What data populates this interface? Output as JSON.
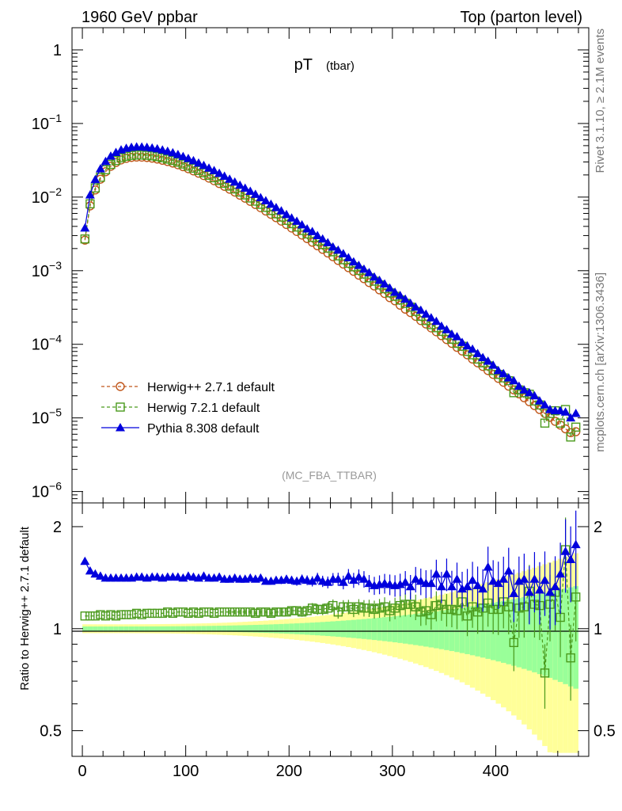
{
  "header": {
    "left": "1960 GeV ppbar",
    "right": "Top (parton level)"
  },
  "side_text": {
    "rivet": "Rivet 3.1.10, ≥ 2.1M events",
    "mcplots": "mcplots.cern.ch [arXiv:1306.3436]"
  },
  "chart_data": [
    {
      "type": "scatter",
      "title": "pT",
      "title_sub": "(tbar)",
      "watermark": "(MC_FBA_TTBAR)",
      "yscale": "log",
      "xlim": [
        -10,
        490
      ],
      "ylim": [
        7e-07,
        2
      ],
      "ytick_labels": [
        {
          "base": "1",
          "exp": ""
        },
        {
          "base": "10",
          "exp": "−1"
        },
        {
          "base": "10",
          "exp": "−2"
        },
        {
          "base": "10",
          "exp": "−3"
        },
        {
          "base": "10",
          "exp": "−4"
        },
        {
          "base": "10",
          "exp": "−5"
        },
        {
          "base": "10",
          "exp": "−6"
        }
      ],
      "legend_position": "bottom-left",
      "x": [
        2.5,
        7.5,
        12.5,
        17.5,
        22.5,
        27.5,
        32.5,
        37.5,
        42.5,
        47.5,
        52.5,
        57.5,
        62.5,
        67.5,
        72.5,
        77.5,
        82.5,
        87.5,
        92.5,
        97.5,
        102.5,
        107.5,
        112.5,
        117.5,
        122.5,
        127.5,
        132.5,
        137.5,
        142.5,
        147.5,
        152.5,
        157.5,
        162.5,
        167.5,
        172.5,
        177.5,
        182.5,
        187.5,
        192.5,
        197.5,
        202.5,
        207.5,
        212.5,
        217.5,
        222.5,
        227.5,
        232.5,
        237.5,
        242.5,
        247.5,
        252.5,
        257.5,
        262.5,
        267.5,
        272.5,
        277.5,
        282.5,
        287.5,
        292.5,
        297.5,
        302.5,
        307.5,
        312.5,
        317.5,
        322.5,
        327.5,
        332.5,
        337.5,
        342.5,
        347.5,
        352.5,
        357.5,
        362.5,
        367.5,
        372.5,
        377.5,
        382.5,
        387.5,
        392.5,
        397.5,
        402.5,
        407.5,
        412.5,
        417.5,
        422.5,
        427.5,
        432.5,
        437.5,
        442.5,
        447.5,
        452.5,
        457.5,
        462.5,
        467.5,
        472.5,
        477.5
      ],
      "series": [
        {
          "name": "Herwig++ 2.7.1 default",
          "color": "#c0561a",
          "marker": "open-circle",
          "line": "dashed",
          "values": [
            0.0026,
            0.0076,
            0.0125,
            0.0175,
            0.0221,
            0.0262,
            0.0295,
            0.032,
            0.0336,
            0.0346,
            0.035,
            0.0349,
            0.0345,
            0.0338,
            0.0329,
            0.0317,
            0.0304,
            0.029,
            0.0275,
            0.0259,
            0.0243,
            0.0227,
            0.0211,
            0.0196,
            0.0181,
            0.0167,
            0.0153,
            0.014,
            0.0128,
            0.0117,
            0.0106,
            0.00967,
            0.00876,
            0.00793,
            0.00717,
            0.00647,
            0.00583,
            0.00525,
            0.00472,
            0.00424,
            0.0038,
            0.00341,
            0.00305,
            0.00273,
            0.00244,
            0.00218,
            0.00195,
            0.00174,
            0.00155,
            0.00138,
            0.00123,
            0.0011,
            0.00098,
            0.00087,
            0.00078,
            0.00069,
            0.00062,
            0.00055,
            0.00049,
            0.00043,
            0.00039,
            0.00034,
            0.0003,
            0.00027,
            0.00024,
            0.00021,
            0.000189,
            0.000167,
            0.000148,
            0.000131,
            0.000116,
            0.000103,
            9.1e-05,
            8.1e-05,
            7.2e-05,
            6.3e-05,
            5.6e-05,
            5e-05,
            4.4e-05,
            3.9e-05,
            3.45e-05,
            3.05e-05,
            2.7e-05,
            2.4e-05,
            2.12e-05,
            1.88e-05,
            1.66e-05,
            1.47e-05,
            1.3e-05,
            1.15e-05,
            1.02e-05,
            9e-06,
            8e-06,
            7.1e-06,
            6.3e-06,
            6.5e-06
          ]
        },
        {
          "name": "Herwig 7.2.1 default",
          "color": "#4a9a1c",
          "marker": "open-square",
          "line": "dashed",
          "values": [
            0.0027,
            0.0081,
            0.0133,
            0.0186,
            0.0235,
            0.0278,
            0.0314,
            0.0341,
            0.0358,
            0.0369,
            0.0374,
            0.0373,
            0.037,
            0.0363,
            0.0354,
            0.0342,
            0.0328,
            0.0314,
            0.0298,
            0.0281,
            0.0264,
            0.0247,
            0.023,
            0.0214,
            0.0198,
            0.0183,
            0.0168,
            0.0154,
            0.0141,
            0.0129,
            0.0117,
            0.0107,
            0.00972,
            0.00881,
            0.00798,
            0.00725,
            0.00656,
            0.00592,
            0.00535,
            0.00483,
            0.00435,
            0.00392,
            0.00352,
            0.00316,
            0.00284,
            0.00253,
            0.00227,
            0.00203,
            0.00181,
            0.00159,
            0.00141,
            0.00126,
            0.00113,
            0.00101,
            0.0009,
            0.0008,
            0.00072,
            0.00064,
            0.00057,
            0.0005,
            0.00045,
            0.0004,
            0.00036,
            0.00032,
            0.00028,
            0.00024,
            0.00021,
            0.000185,
            0.000168,
            0.00015,
            0.000134,
            0.000117,
            0.000103,
            9.4e-05,
            8e-05,
            7.2e-05,
            6.3e-05,
            5.6e-05,
            5.1e-05,
            4.4e-05,
            3.9e-05,
            3.5e-05,
            3.2e-05,
            2.2e-05,
            2.4e-05,
            2.2e-05,
            2.1e-05,
            1.7e-05,
            1.5e-05,
            8.5e-06,
            1.15e-05,
            1.25e-05,
            8.5e-06,
            1.3e-05,
            5.5e-06,
            7.5e-06
          ]
        },
        {
          "name": "Pythia 8.308 default",
          "color": "#0000dd",
          "marker": "filled-triangle",
          "line": "solid",
          "values": [
            0.0038,
            0.0107,
            0.0173,
            0.0242,
            0.0305,
            0.036,
            0.0404,
            0.0438,
            0.046,
            0.0474,
            0.048,
            0.0479,
            0.0474,
            0.0465,
            0.0453,
            0.0437,
            0.0419,
            0.04,
            0.0379,
            0.0356,
            0.0334,
            0.0312,
            0.029,
            0.0269,
            0.0248,
            0.0229,
            0.021,
            0.0192,
            0.0175,
            0.016,
            0.0145,
            0.0132,
            0.012,
            0.0109,
            0.0098,
            0.0089,
            0.008,
            0.0072,
            0.0065,
            0.0058,
            0.0052,
            0.0047,
            0.0042,
            0.0037,
            0.0034,
            0.003,
            0.0027,
            0.0024,
            0.0021,
            0.0019,
            0.0017,
            0.0015,
            0.00132,
            0.00118,
            0.00105,
            0.00094,
            0.00082,
            0.00074,
            0.00066,
            0.00058,
            0.00051,
            0.00046,
            0.00041,
            0.00036,
            0.00032,
            0.00029,
            0.000257,
            0.000229,
            0.000205,
            0.000176,
            0.000158,
            0.000137,
            0.000127,
            0.000106,
            9.5e-05,
            8.6e-05,
            7.5e-05,
            6.6e-05,
            5.9e-05,
            5.2e-05,
            4.4e-05,
            4e-05,
            3.5e-05,
            3.2e-05,
            2.7e-05,
            2.4e-05,
            2.2e-05,
            2e-05,
            1.7e-05,
            1.5e-05,
            1.3e-05,
            1.25e-05,
            1.25e-05,
            1.2e-05,
            1e-05,
            1.15e-05
          ]
        }
      ]
    },
    {
      "type": "scatter",
      "ylabel": "Ratio to Herwig++ 2.7.1 default",
      "xlim": [
        -10,
        490
      ],
      "ylim": [
        0.42,
        2.35
      ],
      "yticks": [
        0.5,
        1,
        2
      ],
      "ytick_labels": [
        "0.5",
        "1",
        "2"
      ],
      "xticks": [
        0,
        100,
        200,
        300,
        400
      ],
      "xtick_labels": [
        "0",
        "100",
        "200",
        "300",
        "400"
      ],
      "reference_line": 1,
      "band_colors": {
        "inner": "#99ff99",
        "outer": "#ffff99"
      },
      "series": [
        {
          "name": "Herwig 7.2.1 default",
          "color": "#4a9a1c",
          "values": [
            1.09,
            1.09,
            1.09,
            1.1,
            1.09,
            1.1,
            1.09,
            1.1,
            1.1,
            1.1,
            1.11,
            1.1,
            1.11,
            1.11,
            1.11,
            1.11,
            1.12,
            1.11,
            1.12,
            1.12,
            1.11,
            1.12,
            1.11,
            1.12,
            1.12,
            1.11,
            1.12,
            1.12,
            1.12,
            1.12,
            1.12,
            1.12,
            1.12,
            1.11,
            1.12,
            1.12,
            1.11,
            1.12,
            1.12,
            1.12,
            1.13,
            1.13,
            1.12,
            1.13,
            1.15,
            1.14,
            1.14,
            1.15,
            1.17,
            1.12,
            1.16,
            1.16,
            1.14,
            1.16,
            1.15,
            1.15,
            1.14,
            1.15,
            1.16,
            1.13,
            1.15,
            1.17,
            1.18,
            1.18,
            1.16,
            1.12,
            1.13,
            1.1,
            1.17,
            1.18,
            1.14,
            1.14,
            1.13,
            1.2,
            1.09,
            1.16,
            1.12,
            1.15,
            1.19,
            1.14,
            1.14,
            1.2,
            1.16,
            0.91,
            1.15,
            1.16,
            1.29,
            1.18,
            1.17,
            0.74,
            1.18,
            1.28,
            1.08,
            1.71,
            0.82,
            1.24
          ]
        },
        {
          "name": "Pythia 8.308 default",
          "color": "#0000dd",
          "values": [
            1.58,
            1.48,
            1.45,
            1.43,
            1.41,
            1.41,
            1.41,
            1.41,
            1.41,
            1.41,
            1.42,
            1.42,
            1.41,
            1.42,
            1.42,
            1.41,
            1.42,
            1.42,
            1.42,
            1.41,
            1.43,
            1.42,
            1.41,
            1.43,
            1.41,
            1.41,
            1.42,
            1.4,
            1.4,
            1.41,
            1.4,
            1.4,
            1.41,
            1.4,
            1.41,
            1.38,
            1.38,
            1.39,
            1.39,
            1.4,
            1.39,
            1.38,
            1.4,
            1.39,
            1.38,
            1.41,
            1.38,
            1.37,
            1.4,
            1.4,
            1.37,
            1.43,
            1.39,
            1.42,
            1.4,
            1.36,
            1.34,
            1.35,
            1.36,
            1.35,
            1.34,
            1.35,
            1.37,
            1.33,
            1.4,
            1.38,
            1.36,
            1.36,
            1.45,
            1.33,
            1.45,
            1.33,
            1.4,
            1.31,
            1.33,
            1.39,
            1.34,
            1.31,
            1.52,
            1.38,
            1.36,
            1.4,
            1.48,
            1.27,
            1.38,
            1.4,
            1.28,
            1.4,
            1.3,
            1.39,
            1.28,
            1.33,
            1.45,
            1.69,
            1.6,
            1.77
          ]
        }
      ]
    }
  ]
}
